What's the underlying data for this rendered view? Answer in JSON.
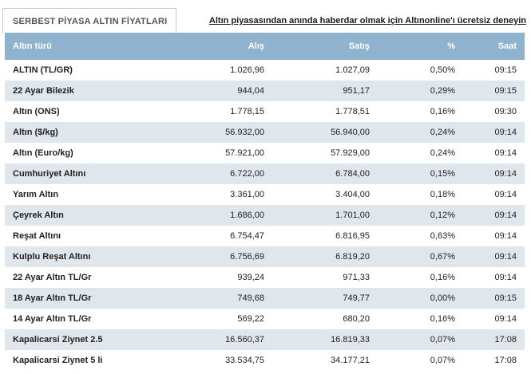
{
  "header": {
    "tab_title": "SERBEST PİYASA ALTIN FİYATLARI",
    "promo_link": "Altın piyasasından anında haberdar olmak için Altınonline'ı ücretsiz deneyin"
  },
  "table": {
    "columns": [
      "Altın türü",
      "Alış",
      "Satış",
      "%",
      "Saat"
    ],
    "rows": [
      {
        "name": "ALTIN (TL/GR)",
        "alis": "1.026,96",
        "satis": "1.027,09",
        "pct": "0,50%",
        "saat": "09:15"
      },
      {
        "name": "22 Ayar Bilezik",
        "alis": "944,04",
        "satis": "951,17",
        "pct": "0,29%",
        "saat": "09:15"
      },
      {
        "name": "Altın (ONS)",
        "alis": "1.778,15",
        "satis": "1.778,51",
        "pct": "0,16%",
        "saat": "09:30"
      },
      {
        "name": "Altın ($/kg)",
        "alis": "56.932,00",
        "satis": "56.940,00",
        "pct": "0,24%",
        "saat": "09:14"
      },
      {
        "name": "Altın (Euro/kg)",
        "alis": "57.921,00",
        "satis": "57.929,00",
        "pct": "0,24%",
        "saat": "09:14"
      },
      {
        "name": "Cumhuriyet Altını",
        "alis": "6.722,00",
        "satis": "6.784,00",
        "pct": "0,15%",
        "saat": "09:14"
      },
      {
        "name": "Yarım Altın",
        "alis": "3.361,00",
        "satis": "3.404,00",
        "pct": "0,18%",
        "saat": "09:14"
      },
      {
        "name": "Çeyrek Altın",
        "alis": "1.686,00",
        "satis": "1.701,00",
        "pct": "0,12%",
        "saat": "09:14"
      },
      {
        "name": "Reşat Altını",
        "alis": "6.754,47",
        "satis": "6.816,95",
        "pct": "0,63%",
        "saat": "09:14"
      },
      {
        "name": "Kulplu Reşat Altını",
        "alis": "6.756,69",
        "satis": "6.819,20",
        "pct": "0,67%",
        "saat": "09:14"
      },
      {
        "name": "22 Ayar Altın TL/Gr",
        "alis": "939,24",
        "satis": "971,33",
        "pct": "0,16%",
        "saat": "09:14"
      },
      {
        "name": "18 Ayar Altın TL/Gr",
        "alis": "749,68",
        "satis": "749,77",
        "pct": "0,00%",
        "saat": "09:15"
      },
      {
        "name": "14 Ayar Altın TL/Gr",
        "alis": "569,22",
        "satis": "680,20",
        "pct": "0,16%",
        "saat": "09:14"
      },
      {
        "name": "Kapalicarsi Ziynet 2.5",
        "alis": "16.560,37",
        "satis": "16.819,33",
        "pct": "0,07%",
        "saat": "17:08"
      },
      {
        "name": "Kapalicarsi Ziynet 5 li",
        "alis": "33.534,75",
        "satis": "34.177,21",
        "pct": "0,07%",
        "saat": "17:08"
      }
    ]
  },
  "colors": {
    "header_bg": "#8fb3ce",
    "stripe_bg": "#dfe6ec"
  }
}
